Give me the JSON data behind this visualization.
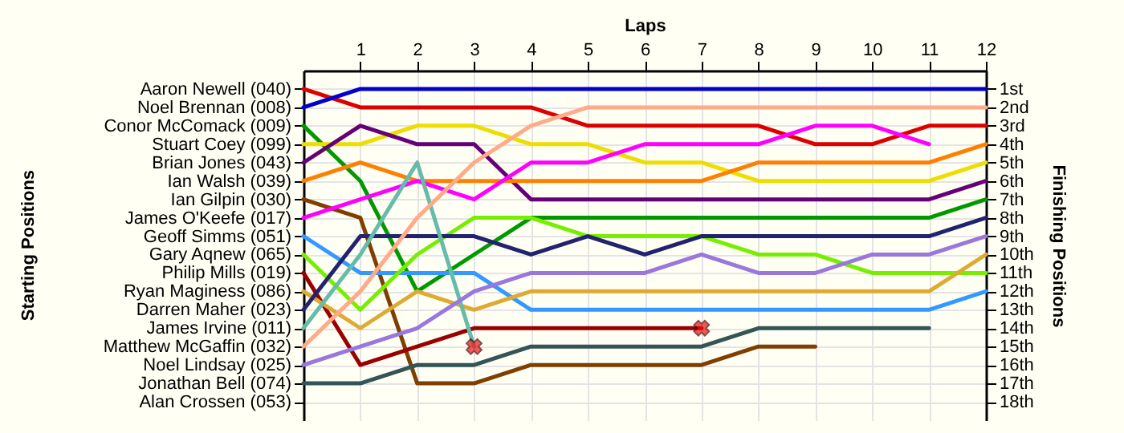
{
  "chart_data": {
    "type": "line",
    "xlabel": "Laps",
    "annotations": [
      "Starting Positions"
    ],
    "y2label": "Finishing Positions",
    "x": [
      0,
      1,
      2,
      3,
      4,
      5,
      6,
      7,
      8,
      9,
      10,
      11,
      12
    ],
    "xlim": [
      0,
      12
    ],
    "xticks": [
      1,
      2,
      3,
      4,
      5,
      6,
      7,
      8,
      9,
      10,
      11,
      12
    ],
    "y_categories": [
      "Aaron Newell (040)",
      "Noel Brennan (008)",
      "Conor McComack (009)",
      "Stuart Coey (099)",
      "Brian Jones (043)",
      "Ian Walsh (039)",
      "Ian Gilpin (030)",
      "James O'Keefe (017)",
      "Geoff Simms (051)",
      "Gary Aqnew (065)",
      "Philip Mills (019)",
      "Ryan Maginess (086)",
      "Darren Maher (023)",
      "James Irvine (011)",
      "Matthew McGaffin (032)",
      "Noel Lindsay (025)",
      "Jonathan Bell (074)",
      "Alan Crossen (053)"
    ],
    "y2lim": [
      19,
      0
    ],
    "y2ticks": [
      {
        "value": 1,
        "label": "1st"
      },
      {
        "value": 2,
        "label": "2nd"
      },
      {
        "value": 3,
        "label": "3rd"
      },
      {
        "value": 4,
        "label": "4th"
      },
      {
        "value": 5,
        "label": "5th"
      },
      {
        "value": 6,
        "label": "6th"
      },
      {
        "value": 7,
        "label": "7th"
      },
      {
        "value": 8,
        "label": "8th"
      },
      {
        "value": 9,
        "label": "9th"
      },
      {
        "value": 10,
        "label": "10th"
      },
      {
        "value": 11,
        "label": "11th"
      },
      {
        "value": 12,
        "label": "12th"
      },
      {
        "value": 13,
        "label": "13th"
      },
      {
        "value": 14,
        "label": "14th"
      },
      {
        "value": 15,
        "label": "15th"
      },
      {
        "value": 16,
        "label": "16th"
      },
      {
        "value": 17,
        "label": "17th"
      },
      {
        "value": 18,
        "label": "18th"
      }
    ],
    "grid": true,
    "line_style": "solid",
    "series": [
      {
        "axis": "y2",
        "color": "#dd0000",
        "values": [
          1,
          2,
          2,
          2,
          2,
          3,
          3,
          3,
          3,
          4,
          4,
          3,
          3
        ]
      },
      {
        "axis": "y2",
        "color": "#0000cc",
        "values": [
          2,
          1,
          1,
          1,
          1,
          1,
          1,
          1,
          1,
          1,
          1,
          1,
          1
        ]
      },
      {
        "axis": "y2",
        "color": "#009900",
        "values": [
          3,
          6,
          12,
          10,
          8,
          8,
          8,
          8,
          8,
          8,
          8,
          8,
          7
        ]
      },
      {
        "axis": "y2",
        "color": "#eedd00",
        "values": [
          4,
          4,
          3,
          3,
          4,
          4,
          5,
          5,
          6,
          6,
          6,
          6,
          5
        ]
      },
      {
        "axis": "y2",
        "color": "#660077",
        "values": [
          5,
          3,
          4,
          4,
          7,
          7,
          7,
          7,
          7,
          7,
          7,
          7,
          6
        ]
      },
      {
        "axis": "y2",
        "color": "#ff7f00",
        "values": [
          6,
          5,
          6,
          6,
          6,
          6,
          6,
          6,
          5,
          5,
          5,
          5,
          4
        ]
      },
      {
        "axis": "y2",
        "color": "#7f3f00",
        "values": [
          7,
          8,
          17,
          17,
          16,
          16,
          16,
          16,
          15,
          15,
          null,
          null,
          null
        ]
      },
      {
        "axis": "y2",
        "color": "#ff00ff",
        "values": [
          8,
          7,
          6,
          7,
          5,
          5,
          4,
          4,
          4,
          3,
          3,
          4,
          null
        ]
      },
      {
        "axis": "y2",
        "color": "#3399ff",
        "values": [
          9,
          11,
          11,
          11,
          13,
          13,
          13,
          13,
          13,
          13,
          13,
          13,
          12
        ]
      },
      {
        "axis": "y2",
        "color": "#77ee00",
        "values": [
          10,
          13,
          10,
          8,
          8,
          9,
          9,
          9,
          10,
          10,
          11,
          11,
          11
        ]
      },
      {
        "axis": "y2",
        "color": "#990000",
        "values": [
          11,
          16,
          15,
          14,
          14,
          14,
          14,
          14,
          null,
          null,
          null,
          null,
          null
        ]
      },
      {
        "axis": "y2",
        "color": "#ddaa33",
        "values": [
          12,
          14,
          12,
          13,
          12,
          12,
          12,
          12,
          12,
          12,
          12,
          12,
          10
        ]
      },
      {
        "axis": "y2",
        "color": "#22226e",
        "values": [
          13,
          9,
          9,
          9,
          10,
          9,
          10,
          9,
          9,
          9,
          9,
          9,
          8
        ]
      },
      {
        "axis": "y2",
        "color": "#66bbaa",
        "values": [
          14,
          10,
          5,
          15,
          null,
          null,
          null,
          null,
          null,
          null,
          null,
          null,
          null
        ]
      },
      {
        "axis": "y2",
        "color": "#ffaa88",
        "values": [
          15,
          12,
          8,
          5,
          3,
          2,
          2,
          2,
          2,
          2,
          2,
          2,
          2
        ]
      },
      {
        "axis": "y2",
        "color": "#9977dd",
        "values": [
          16,
          15,
          14,
          12,
          11,
          11,
          11,
          10,
          11,
          11,
          10,
          10,
          9
        ]
      },
      {
        "axis": "y2",
        "color": "#335555",
        "values": [
          17,
          17,
          16,
          16,
          15,
          15,
          15,
          15,
          14,
          14,
          14,
          14,
          null
        ]
      },
      {
        "axis": "y2",
        "type": "scatter",
        "marker": "cross",
        "color": "#ee1111",
        "x": [
          3,
          7
        ],
        "values": [
          15,
          14
        ]
      }
    ]
  }
}
